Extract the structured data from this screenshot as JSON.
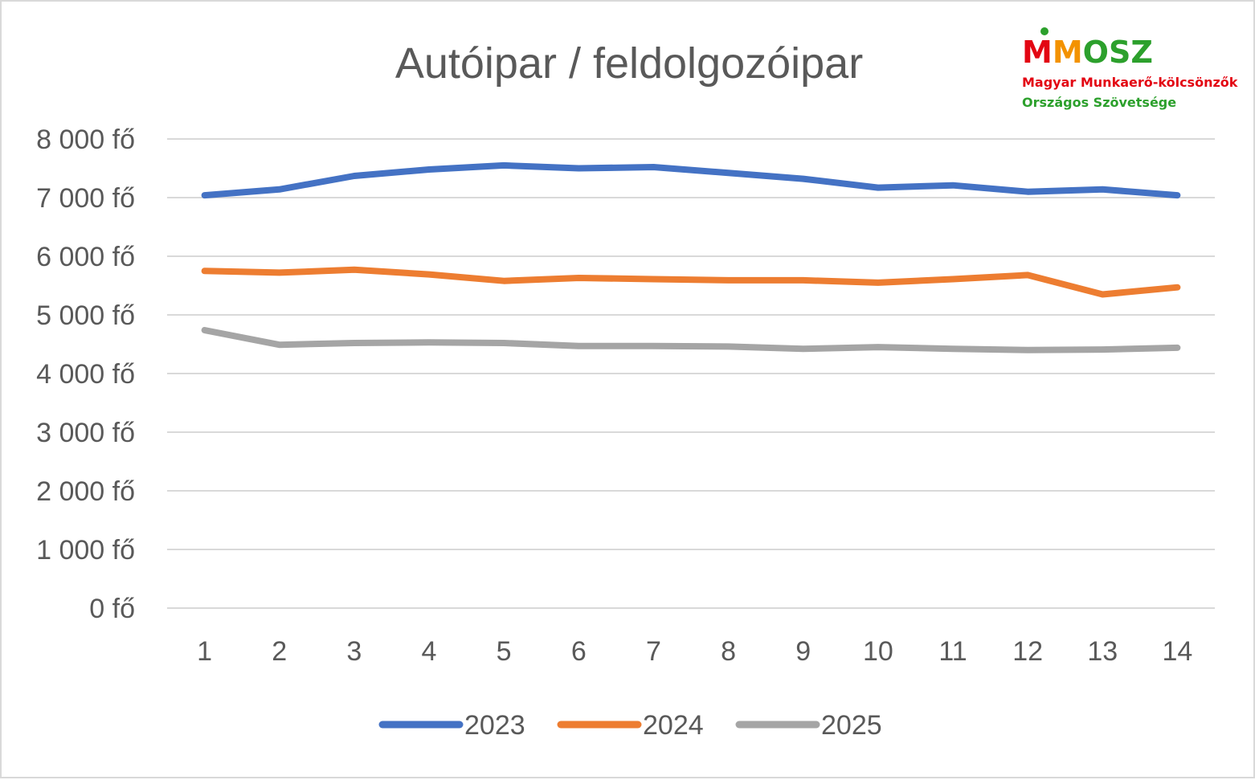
{
  "chart_data": {
    "type": "line",
    "title": "Autóipar / feldolgozóipar",
    "xlabel": "",
    "ylabel": "",
    "categories": [
      "1",
      "2",
      "3",
      "4",
      "5",
      "6",
      "7",
      "8",
      "9",
      "10",
      "11",
      "12",
      "13",
      "14"
    ],
    "ylim": [
      0,
      8000
    ],
    "yticks": [
      0,
      1000,
      2000,
      3000,
      4000,
      5000,
      6000,
      7000,
      8000
    ],
    "ytick_labels": [
      "0 fő",
      "1 000 fő",
      "2 000 fő",
      "3 000 fő",
      "4 000 fő",
      "5 000 fő",
      "6 000 fő",
      "7 000 fő",
      "8 000 fő"
    ],
    "grid": true,
    "legend_position": "bottom",
    "series": [
      {
        "name": "2023",
        "color": "#4472C4",
        "values": [
          7040,
          7140,
          7370,
          7480,
          7550,
          7500,
          7520,
          7420,
          7320,
          7170,
          7210,
          7100,
          7140,
          7040
        ]
      },
      {
        "name": "2024",
        "color": "#ED7D31",
        "values": [
          5750,
          5720,
          5770,
          5690,
          5580,
          5630,
          5610,
          5590,
          5590,
          5550,
          5610,
          5680,
          5350,
          5470
        ]
      },
      {
        "name": "2025",
        "color": "#A5A5A5",
        "values": [
          4740,
          4490,
          4520,
          4530,
          4520,
          4470,
          4470,
          4460,
          4420,
          4450,
          4420,
          4400,
          4410,
          4440
        ]
      }
    ]
  },
  "logo": {
    "mark": "MMOSZ",
    "line1": "Magyar Munkaerő-kölcsönzők",
    "line2": "Országos Szövetsége",
    "red": "#E30613",
    "green": "#2CA02C",
    "orange": "#F39200"
  }
}
